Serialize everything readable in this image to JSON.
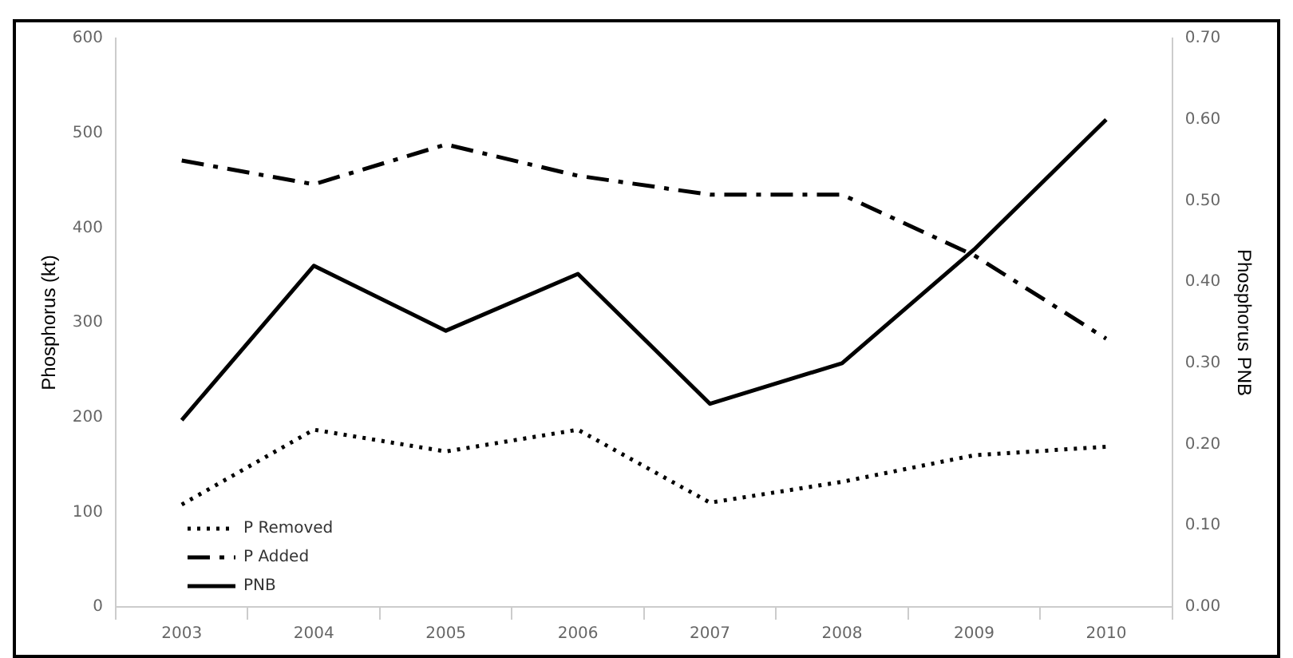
{
  "chart_data": {
    "type": "line",
    "ylabel": "Phosphorus (kt)",
    "y2label": "Phosphorus PNB",
    "categories": [
      "2003",
      "2004",
      "2005",
      "2006",
      "2007",
      "2008",
      "2009",
      "2010"
    ],
    "series": [
      {
        "name": "P Removed",
        "color": "#000000",
        "line_style": "dotted",
        "values": [
          108,
          187,
          164,
          187,
          110,
          132,
          160,
          169
        ]
      },
      {
        "name": "P Added",
        "color": "#000000",
        "line_style": "dashed",
        "values": [
          471,
          446,
          488,
          455,
          435,
          435,
          371,
          283
        ]
      },
      {
        "name": "PNB",
        "color": "#000000",
        "line_style": "solid",
        "axis": "y2",
        "values": [
          0.23,
          0.42,
          0.34,
          0.41,
          0.25,
          0.3,
          0.44,
          0.6
        ]
      }
    ],
    "ylim": [
      0,
      600
    ],
    "yticks": [
      0,
      100,
      200,
      300,
      400,
      500,
      600
    ],
    "y2lim": [
      0,
      0.7
    ],
    "y2ticks": [
      {
        "value": 0,
        "label": "0.00"
      },
      {
        "value": 0.1,
        "label": "0.10"
      },
      {
        "value": 0.2,
        "label": "0.20"
      },
      {
        "value": 0.3,
        "label": "0.30"
      },
      {
        "value": 0.4,
        "label": "0.40"
      },
      {
        "value": 0.5,
        "label": "0.50"
      },
      {
        "value": 0.6,
        "label": "0.60"
      },
      {
        "value": 0.7,
        "label": "0.70"
      }
    ],
    "grid": false,
    "legend": "bottom left",
    "marker": "none"
  }
}
